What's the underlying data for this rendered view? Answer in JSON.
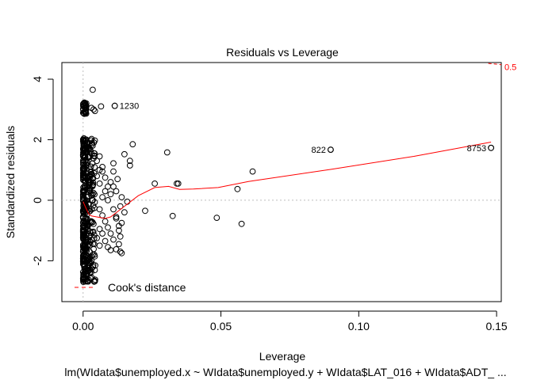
{
  "chart_data": {
    "type": "scatter",
    "title": "Residuals vs Leverage",
    "xlabel": "Leverage",
    "ylabel": "Standardized residuals",
    "subtitle": "lm(WIdata$unemployed.x ~ WIdata$unemployed.y + WIdata$LAT_016 + WIdata$ADT_ ...",
    "xlim": [
      -0.0077,
      0.1517
    ],
    "ylim": [
      -3.35,
      4.55
    ],
    "x_ticks": [
      {
        "value": 0.0,
        "label": "0.00"
      },
      {
        "value": 0.05,
        "label": "0.05"
      },
      {
        "value": 0.1,
        "label": "0.10"
      },
      {
        "value": 0.15,
        "label": "0.15"
      }
    ],
    "y_ticks": [
      {
        "value": -2,
        "label": "-2"
      },
      {
        "value": 0,
        "label": "0"
      },
      {
        "value": 2,
        "label": "2"
      },
      {
        "value": 4,
        "label": "4"
      }
    ],
    "reference_lines": {
      "x": 0,
      "y": 0
    },
    "labeled_points": [
      {
        "x": 0.0115,
        "y": 3.12,
        "label": "1230"
      },
      {
        "x": 0.0898,
        "y": 1.67,
        "label": "822"
      },
      {
        "x": 0.148,
        "y": 1.73,
        "label": "8753"
      }
    ],
    "points": [
      [
        0.0035,
        3.65
      ],
      [
        0.003,
        3.05
      ],
      [
        0.0065,
        3.1
      ],
      [
        0.0038,
        3.0
      ],
      [
        0.0043,
        2.95
      ],
      [
        0.0305,
        1.58
      ],
      [
        0.018,
        1.85
      ],
      [
        0.015,
        1.52
      ],
      [
        0.017,
        1.3
      ],
      [
        0.017,
        1.15
      ],
      [
        0.011,
        1.22
      ],
      [
        0.011,
        0.95
      ],
      [
        0.0125,
        0.7
      ],
      [
        0.01,
        0.6
      ],
      [
        0.009,
        0.45
      ],
      [
        0.012,
        0.3
      ],
      [
        0.014,
        0.1
      ],
      [
        0.016,
        -0.05
      ],
      [
        0.0135,
        -0.2
      ],
      [
        0.015,
        -0.4
      ],
      [
        0.012,
        -0.55
      ],
      [
        0.014,
        -0.75
      ],
      [
        0.013,
        -1.0
      ],
      [
        0.0135,
        -1.2
      ],
      [
        0.013,
        -1.45
      ],
      [
        0.011,
        -1.3
      ],
      [
        0.01,
        -1.1
      ],
      [
        0.009,
        -0.9
      ],
      [
        0.008,
        -0.7
      ],
      [
        0.007,
        -0.5
      ],
      [
        0.006,
        -0.3
      ],
      [
        0.007,
        0.1
      ],
      [
        0.008,
        0.3
      ],
      [
        0.006,
        0.55
      ],
      [
        0.005,
        0.8
      ],
      [
        0.006,
        1.0
      ],
      [
        0.005,
        1.3
      ],
      [
        0.007,
        1.1
      ],
      [
        0.004,
        1.55
      ],
      [
        0.006,
        1.45
      ],
      [
        0.009,
        -1.55
      ],
      [
        0.01,
        -1.65
      ],
      [
        0.012,
        -1.62
      ],
      [
        0.0135,
        -1.7
      ],
      [
        0.014,
        -1.75
      ],
      [
        0.008,
        -1.35
      ],
      [
        0.007,
        -1.1
      ],
      [
        0.006,
        -0.95
      ],
      [
        0.005,
        -1.25
      ],
      [
        0.004,
        -1.45
      ],
      [
        0.0035,
        -1.8
      ],
      [
        0.006,
        -1.5
      ],
      [
        0.013,
        -0.85
      ],
      [
        0.012,
        -0.6
      ],
      [
        0.011,
        -0.3
      ],
      [
        0.009,
        0.0
      ],
      [
        0.01,
        0.2
      ],
      [
        0.011,
        0.45
      ],
      [
        0.008,
        0.75
      ],
      [
        0.007,
        0.95
      ],
      [
        0.0225,
        -0.35
      ],
      [
        0.026,
        0.55
      ],
      [
        0.0325,
        -0.52
      ],
      [
        0.0345,
        0.55
      ],
      [
        0.034,
        0.55
      ],
      [
        0.0485,
        -0.58
      ],
      [
        0.056,
        0.37
      ],
      [
        0.0575,
        -0.78
      ],
      [
        0.0615,
        0.95
      ],
      [
        0.0898,
        1.67
      ],
      [
        0.148,
        1.73
      ],
      [
        0.0115,
        3.12
      ]
    ],
    "smooth_line": [
      [
        0.0,
        -0.05
      ],
      [
        0.001,
        -0.25
      ],
      [
        0.002,
        -0.45
      ],
      [
        0.003,
        -0.52
      ],
      [
        0.005,
        -0.55
      ],
      [
        0.008,
        -0.6
      ],
      [
        0.01,
        -0.55
      ],
      [
        0.015,
        -0.2
      ],
      [
        0.02,
        0.15
      ],
      [
        0.026,
        0.42
      ],
      [
        0.031,
        0.46
      ],
      [
        0.035,
        0.36
      ],
      [
        0.04,
        0.37
      ],
      [
        0.049,
        0.42
      ],
      [
        0.06,
        0.62
      ],
      [
        0.09,
        1.02
      ],
      [
        0.12,
        1.45
      ],
      [
        0.148,
        1.92
      ]
    ],
    "cooks_distance": {
      "label": "0.5",
      "points": [
        [
          0.147,
          4.52
        ],
        [
          0.1517,
          4.48
        ]
      ]
    },
    "legend": {
      "position": "bottom-left",
      "entries": [
        {
          "label": "Cook's distance",
          "color": "#ff0000",
          "style": "dashed"
        }
      ]
    },
    "colors": {
      "smooth": "#ff0000",
      "cooks": "#ff0000",
      "points": "#000000",
      "reference": "#bebebe"
    },
    "grid": false
  }
}
